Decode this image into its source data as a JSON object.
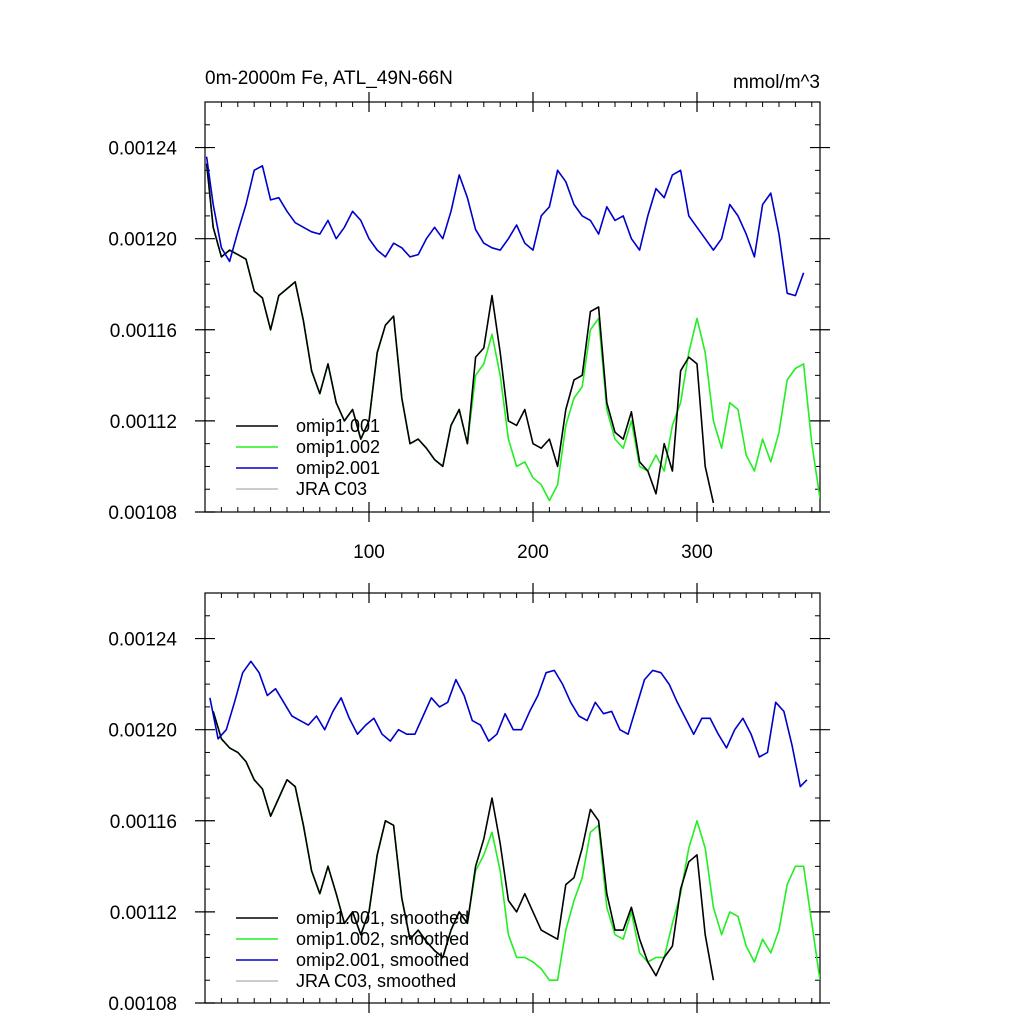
{
  "figure": {
    "title_left": "0m-2000m Fe, ATL_49N-66N",
    "title_right": "mmol/m^3"
  },
  "colors": {
    "omip1_001": "#000000",
    "omip1_002": "#22ee22",
    "omip2_001": "#0000cc",
    "jra_c03": "#bbbbbb"
  },
  "chart_data": [
    {
      "type": "line",
      "xlim": [
        0,
        375
      ],
      "ylim": [
        0.00108,
        0.00126
      ],
      "xticks": [
        100,
        200,
        300
      ],
      "xtick_labels": [
        "100",
        "200",
        "300"
      ],
      "yticks": [
        0.00108,
        0.00112,
        0.00116,
        0.0012,
        0.00124
      ],
      "ytick_labels": [
        "0.00108",
        "0.00112",
        "0.00116",
        "0.00120",
        "0.00124"
      ],
      "legend_location": "lower-left",
      "series": [
        {
          "name": "omip1.001",
          "color": "#000000",
          "x": [
            1,
            5,
            10,
            15,
            20,
            25,
            30,
            35,
            40,
            45,
            50,
            55,
            60,
            65,
            70,
            75,
            80,
            85,
            90,
            95,
            100,
            105,
            110,
            115,
            120,
            125,
            130,
            135,
            140,
            145,
            150,
            155,
            160,
            165,
            170,
            175,
            180,
            185,
            190,
            195,
            200,
            205,
            210,
            215,
            220,
            225,
            230,
            235,
            240,
            245,
            250,
            255,
            260,
            265,
            270,
            275,
            280,
            285,
            290,
            295,
            300,
            305,
            310
          ],
          "y": [
            0.001233,
            0.001205,
            0.001192,
            0.001195,
            0.001193,
            0.001191,
            0.001177,
            0.001174,
            0.00116,
            0.001175,
            0.001178,
            0.001181,
            0.001164,
            0.001142,
            0.001132,
            0.001145,
            0.001128,
            0.00112,
            0.001125,
            0.001112,
            0.00112,
            0.00115,
            0.001162,
            0.001166,
            0.00113,
            0.00111,
            0.001112,
            0.001108,
            0.001103,
            0.0011,
            0.001118,
            0.001125,
            0.00111,
            0.001148,
            0.001152,
            0.001175,
            0.00115,
            0.00112,
            0.001118,
            0.001125,
            0.00111,
            0.001108,
            0.001112,
            0.0011,
            0.001125,
            0.001138,
            0.00114,
            0.001168,
            0.00117,
            0.001128,
            0.001115,
            0.001112,
            0.001124,
            0.001102,
            0.001098,
            0.001088,
            0.00111,
            0.001098,
            0.001142,
            0.001148,
            0.001145,
            0.0011,
            0.001084
          ]
        },
        {
          "name": "omip1.002",
          "color": "#22ee22",
          "x": [
            1,
            5,
            10,
            15,
            20,
            25,
            30,
            35,
            40,
            45,
            50,
            55,
            60,
            65,
            70,
            75,
            80,
            85,
            90,
            95,
            100,
            105,
            110,
            115,
            120,
            125,
            130,
            135,
            140,
            145,
            150,
            155,
            160,
            165,
            170,
            175,
            180,
            185,
            190,
            195,
            200,
            205,
            210,
            215,
            220,
            225,
            230,
            235,
            240,
            245,
            250,
            255,
            260,
            265,
            270,
            275,
            280,
            285,
            290,
            295,
            300,
            305,
            310,
            315,
            320,
            325,
            330,
            335,
            340,
            345,
            350,
            355,
            360,
            365,
            370,
            375
          ],
          "y": [
            0.001233,
            0.001205,
            0.001192,
            0.001195,
            0.001193,
            0.001191,
            0.001177,
            0.001174,
            0.00116,
            0.001175,
            0.001178,
            0.001181,
            0.001164,
            0.001142,
            0.001132,
            0.001145,
            0.001128,
            0.00112,
            0.001125,
            0.001112,
            0.00112,
            0.00115,
            0.001162,
            0.001166,
            0.00113,
            0.00111,
            0.001112,
            0.001108,
            0.001103,
            0.0011,
            0.001118,
            0.001125,
            0.00111,
            0.00114,
            0.001145,
            0.001158,
            0.00114,
            0.001112,
            0.0011,
            0.001102,
            0.001095,
            0.001092,
            0.001085,
            0.001092,
            0.001118,
            0.00113,
            0.001135,
            0.00116,
            0.001165,
            0.001125,
            0.001112,
            0.001108,
            0.00112,
            0.0011,
            0.001098,
            0.001105,
            0.001098,
            0.001118,
            0.001128,
            0.00115,
            0.001165,
            0.00115,
            0.00112,
            0.001108,
            0.001128,
            0.001125,
            0.001105,
            0.001098,
            0.001112,
            0.001102,
            0.001115,
            0.001138,
            0.001143,
            0.001145,
            0.00111,
            0.001086
          ]
        },
        {
          "name": "omip2.001",
          "color": "#0000cc",
          "x": [
            1,
            5,
            10,
            15,
            20,
            25,
            30,
            35,
            40,
            45,
            50,
            55,
            60,
            65,
            70,
            75,
            80,
            85,
            90,
            95,
            100,
            105,
            110,
            115,
            120,
            125,
            130,
            135,
            140,
            145,
            150,
            155,
            160,
            165,
            170,
            175,
            180,
            185,
            190,
            195,
            200,
            205,
            210,
            215,
            220,
            225,
            230,
            235,
            240,
            245,
            250,
            255,
            260,
            265,
            270,
            275,
            280,
            285,
            290,
            295,
            300,
            305,
            310,
            315,
            320,
            325,
            330,
            335,
            340,
            345,
            350,
            355,
            360,
            365
          ],
          "y": [
            0.001236,
            0.001215,
            0.001196,
            0.00119,
            0.001203,
            0.001215,
            0.00123,
            0.001232,
            0.001217,
            0.001218,
            0.001212,
            0.001207,
            0.001205,
            0.001203,
            0.001202,
            0.001208,
            0.0012,
            0.001205,
            0.001212,
            0.001208,
            0.0012,
            0.001195,
            0.001192,
            0.001198,
            0.001196,
            0.001192,
            0.001193,
            0.0012,
            0.001205,
            0.0012,
            0.001212,
            0.001228,
            0.001218,
            0.001204,
            0.001198,
            0.001196,
            0.001195,
            0.0012,
            0.001206,
            0.001198,
            0.001195,
            0.00121,
            0.001214,
            0.00123,
            0.001225,
            0.001215,
            0.00121,
            0.001208,
            0.001202,
            0.001214,
            0.001208,
            0.00121,
            0.0012,
            0.001195,
            0.00121,
            0.001222,
            0.001218,
            0.001228,
            0.00123,
            0.00121,
            0.001205,
            0.0012,
            0.001195,
            0.0012,
            0.001215,
            0.00121,
            0.001202,
            0.001192,
            0.001215,
            0.00122,
            0.001202,
            0.001176,
            0.001175,
            0.001185
          ]
        },
        {
          "name": "JRA C03",
          "color": "#bbbbbb",
          "x": [],
          "y": []
        }
      ]
    },
    {
      "type": "line",
      "xlim": [
        0,
        375
      ],
      "ylim": [
        0.00108,
        0.00126
      ],
      "xticks": [
        100,
        200,
        300
      ],
      "xtick_labels": [],
      "yticks": [
        0.00108,
        0.00112,
        0.00116,
        0.0012,
        0.00124
      ],
      "ytick_labels": [
        "0.00108",
        "0.00112",
        "0.00116",
        "0.00120",
        "0.00124"
      ],
      "legend_location": "lower-left",
      "series": [
        {
          "name": "omip1.001, smoothed",
          "color": "#000000",
          "x": [
            5,
            10,
            15,
            20,
            25,
            30,
            35,
            40,
            45,
            50,
            55,
            60,
            65,
            70,
            75,
            80,
            85,
            90,
            95,
            100,
            105,
            110,
            115,
            120,
            125,
            130,
            135,
            140,
            145,
            150,
            155,
            160,
            165,
            170,
            175,
            180,
            185,
            190,
            195,
            200,
            205,
            210,
            215,
            220,
            225,
            230,
            235,
            240,
            245,
            250,
            255,
            260,
            265,
            270,
            275,
            280,
            285,
            290,
            295,
            300,
            305,
            310
          ],
          "y": [
            0.001208,
            0.001196,
            0.001192,
            0.00119,
            0.001186,
            0.001178,
            0.001174,
            0.001162,
            0.00117,
            0.001178,
            0.001175,
            0.001158,
            0.001138,
            0.001128,
            0.00114,
            0.001128,
            0.001115,
            0.00112,
            0.00111,
            0.00112,
            0.001145,
            0.00116,
            0.001158,
            0.001126,
            0.001108,
            0.001112,
            0.001107,
            0.001103,
            0.0011,
            0.001112,
            0.00112,
            0.001115,
            0.00114,
            0.001152,
            0.00117,
            0.00115,
            0.001125,
            0.00112,
            0.001128,
            0.00112,
            0.001112,
            0.00111,
            0.001108,
            0.001132,
            0.001135,
            0.001148,
            0.001165,
            0.00116,
            0.001128,
            0.001112,
            0.001112,
            0.001122,
            0.001108,
            0.001098,
            0.001092,
            0.0011,
            0.001105,
            0.00113,
            0.001142,
            0.001145,
            0.00111,
            0.00109
          ]
        },
        {
          "name": "omip1.002, smoothed",
          "color": "#22ee22",
          "x": [
            5,
            10,
            15,
            20,
            25,
            30,
            35,
            40,
            45,
            50,
            55,
            60,
            65,
            70,
            75,
            80,
            85,
            90,
            95,
            100,
            105,
            110,
            115,
            120,
            125,
            130,
            135,
            140,
            145,
            150,
            155,
            160,
            165,
            170,
            175,
            180,
            185,
            190,
            195,
            200,
            205,
            210,
            215,
            220,
            225,
            230,
            235,
            240,
            245,
            250,
            255,
            260,
            265,
            270,
            275,
            280,
            285,
            290,
            295,
            300,
            305,
            310,
            315,
            320,
            325,
            330,
            335,
            340,
            345,
            350,
            355,
            360,
            365,
            370,
            375
          ],
          "y": [
            0.001208,
            0.001196,
            0.001192,
            0.00119,
            0.001186,
            0.001178,
            0.001174,
            0.001162,
            0.00117,
            0.001178,
            0.001175,
            0.001158,
            0.001138,
            0.001128,
            0.00114,
            0.001128,
            0.001115,
            0.00112,
            0.00111,
            0.00112,
            0.001145,
            0.00116,
            0.001158,
            0.001126,
            0.001108,
            0.001112,
            0.001107,
            0.001103,
            0.0011,
            0.001112,
            0.00112,
            0.001115,
            0.001138,
            0.001145,
            0.001155,
            0.001138,
            0.00111,
            0.0011,
            0.0011,
            0.001098,
            0.001095,
            0.00109,
            0.00109,
            0.001112,
            0.001125,
            0.001135,
            0.001155,
            0.001158,
            0.001122,
            0.00111,
            0.001108,
            0.00112,
            0.001102,
            0.001098,
            0.0011,
            0.0011,
            0.001115,
            0.001128,
            0.001148,
            0.00116,
            0.001148,
            0.001122,
            0.00111,
            0.00112,
            0.001118,
            0.001105,
            0.001098,
            0.001108,
            0.001102,
            0.001112,
            0.001132,
            0.00114,
            0.00114,
            0.001115,
            0.00109
          ]
        },
        {
          "name": "omip2.001, smoothed",
          "color": "#0000cc",
          "x": [
            3,
            8,
            13,
            18,
            23,
            28,
            33,
            38,
            43,
            48,
            53,
            58,
            63,
            68,
            73,
            78,
            83,
            88,
            93,
            98,
            103,
            108,
            113,
            118,
            123,
            128,
            133,
            138,
            143,
            148,
            153,
            158,
            163,
            168,
            173,
            178,
            183,
            188,
            193,
            198,
            203,
            208,
            213,
            218,
            223,
            228,
            233,
            238,
            243,
            248,
            253,
            258,
            263,
            268,
            273,
            278,
            283,
            288,
            293,
            298,
            303,
            308,
            313,
            318,
            323,
            328,
            333,
            338,
            343,
            348,
            353,
            358,
            363,
            367
          ],
          "y": [
            0.001214,
            0.001196,
            0.0012,
            0.001212,
            0.001225,
            0.00123,
            0.001225,
            0.001215,
            0.001218,
            0.001212,
            0.001206,
            0.001204,
            0.001202,
            0.001206,
            0.0012,
            0.001208,
            0.001214,
            0.001205,
            0.001198,
            0.001202,
            0.001205,
            0.001198,
            0.001195,
            0.0012,
            0.001198,
            0.001198,
            0.001206,
            0.001214,
            0.00121,
            0.001212,
            0.001222,
            0.001215,
            0.001204,
            0.001202,
            0.001195,
            0.001198,
            0.001207,
            0.0012,
            0.0012,
            0.001208,
            0.001215,
            0.001225,
            0.001226,
            0.00122,
            0.001212,
            0.001206,
            0.001204,
            0.001212,
            0.001207,
            0.001208,
            0.0012,
            0.001198,
            0.00121,
            0.001222,
            0.001226,
            0.001225,
            0.00122,
            0.001212,
            0.001205,
            0.001198,
            0.001205,
            0.001205,
            0.001198,
            0.001192,
            0.0012,
            0.001205,
            0.001198,
            0.001188,
            0.00119,
            0.001212,
            0.001208,
            0.001193,
            0.001175,
            0.001178
          ]
        },
        {
          "name": "JRA C03, smoothed",
          "color": "#bbbbbb",
          "x": [],
          "y": []
        }
      ]
    }
  ]
}
